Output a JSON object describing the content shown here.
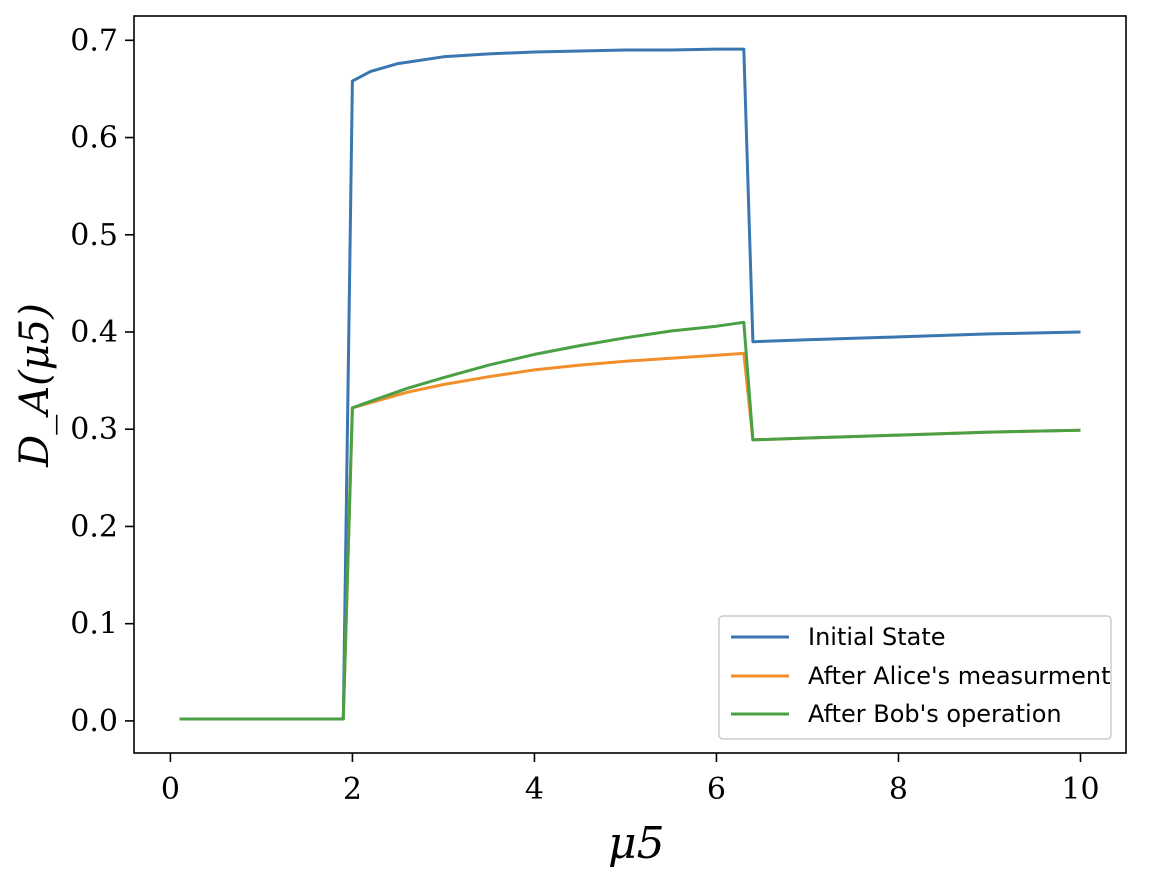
{
  "chart_data": {
    "type": "line",
    "title": "",
    "xlabel": "μ5",
    "ylabel": "D_A(μ5)",
    "xlim": [
      -0.4,
      10.5
    ],
    "ylim": [
      -0.033,
      0.725
    ],
    "xticks": [
      0,
      2,
      4,
      6,
      8,
      10
    ],
    "xtick_labels": [
      "0",
      "2",
      "4",
      "6",
      "8",
      "10"
    ],
    "yticks": [
      0.0,
      0.1,
      0.2,
      0.3,
      0.4,
      0.5,
      0.6,
      0.7
    ],
    "ytick_labels": [
      "0.0",
      "0.1",
      "0.2",
      "0.3",
      "0.4",
      "0.5",
      "0.6",
      "0.7"
    ],
    "grid": false,
    "legend_position": "bottom-right",
    "series": [
      {
        "name": "Initial State",
        "color": "#3a76b0",
        "x": [
          0.1,
          1.9,
          2.0,
          2.2,
          2.5,
          3.0,
          3.5,
          4.0,
          4.5,
          5.0,
          5.5,
          6.0,
          6.3,
          6.4,
          7.0,
          8.0,
          9.0,
          10.0
        ],
        "y": [
          0.002,
          0.002,
          0.658,
          0.668,
          0.676,
          0.683,
          0.686,
          0.688,
          0.689,
          0.69,
          0.69,
          0.691,
          0.691,
          0.39,
          0.392,
          0.395,
          0.398,
          0.4
        ]
      },
      {
        "name": "After Alice's measurment",
        "color": "#f28e2b",
        "x": [
          0.1,
          1.9,
          2.0,
          2.3,
          2.6,
          3.0,
          3.5,
          4.0,
          4.5,
          5.0,
          5.5,
          6.0,
          6.3,
          6.4,
          7.0,
          8.0,
          9.0,
          10.0
        ],
        "y": [
          0.002,
          0.002,
          0.322,
          0.33,
          0.338,
          0.346,
          0.354,
          0.361,
          0.366,
          0.37,
          0.373,
          0.376,
          0.378,
          0.289,
          0.291,
          0.294,
          0.297,
          0.299
        ]
      },
      {
        "name": "After Bob's operation",
        "color": "#4aa044",
        "x": [
          0.1,
          1.9,
          2.0,
          2.3,
          2.6,
          3.0,
          3.5,
          4.0,
          4.5,
          5.0,
          5.5,
          6.0,
          6.3,
          6.4,
          7.0,
          8.0,
          9.0,
          10.0
        ],
        "y": [
          0.002,
          0.002,
          0.322,
          0.332,
          0.342,
          0.353,
          0.366,
          0.377,
          0.386,
          0.394,
          0.401,
          0.406,
          0.41,
          0.289,
          0.291,
          0.294,
          0.297,
          0.299
        ]
      }
    ]
  }
}
